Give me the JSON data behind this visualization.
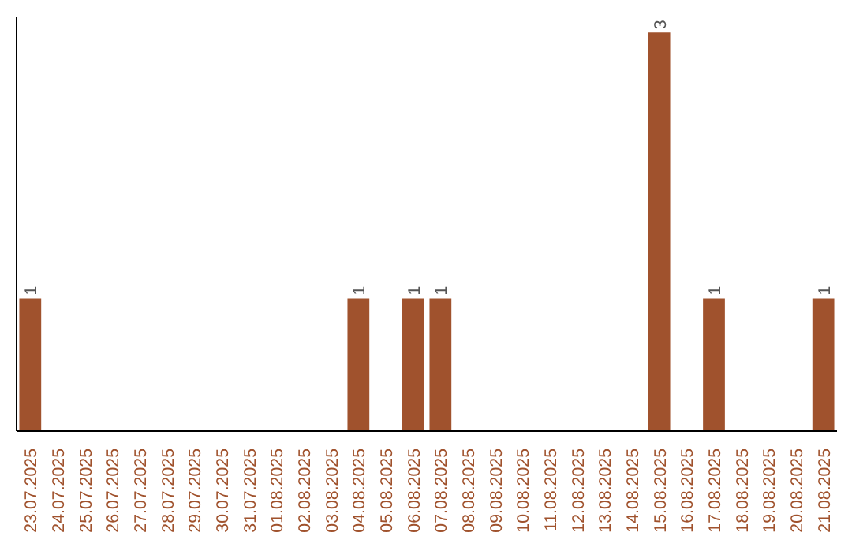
{
  "chart_data": {
    "type": "bar",
    "categories": [
      "23.07.2025",
      "24.07.2025",
      "25.07.2025",
      "26.07.2025",
      "27.07.2025",
      "28.07.2025",
      "29.07.2025",
      "30.07.2025",
      "31.07.2025",
      "01.08.2025",
      "02.08.2025",
      "03.08.2025",
      "04.08.2025",
      "05.08.2025",
      "06.08.2025",
      "07.08.2025",
      "08.08.2025",
      "09.08.2025",
      "10.08.2025",
      "11.08.2025",
      "12.08.2025",
      "13.08.2025",
      "14.08.2025",
      "15.08.2025",
      "16.08.2025",
      "17.08.2025",
      "18.08.2025",
      "19.08.2025",
      "20.08.2025",
      "21.08.2025"
    ],
    "values": [
      1,
      0,
      0,
      0,
      0,
      0,
      0,
      0,
      0,
      0,
      0,
      0,
      1,
      0,
      1,
      1,
      0,
      0,
      0,
      0,
      0,
      0,
      0,
      3,
      0,
      1,
      0,
      0,
      0,
      1
    ],
    "value_labels": [
      "1",
      null,
      null,
      null,
      null,
      null,
      null,
      null,
      null,
      null,
      null,
      null,
      "1",
      null,
      "1",
      "1",
      null,
      null,
      null,
      null,
      null,
      null,
      null,
      "3",
      null,
      "1",
      null,
      null,
      null,
      "1"
    ],
    "color": "#a0522d",
    "tick_labels": "x"
  }
}
